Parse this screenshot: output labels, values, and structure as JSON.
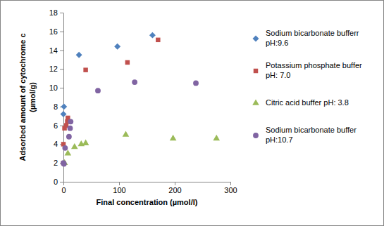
{
  "chart_data": {
    "type": "scatter",
    "x_label": "Final concentration (µmol/l)",
    "y_label": "Adsorbed amount of cytochrome c (µmol/g)",
    "xlim": [
      0,
      300
    ],
    "xticks": [
      0,
      100,
      200,
      300
    ],
    "ylim": [
      0,
      18
    ],
    "yticks": [
      0,
      2,
      4,
      6,
      8,
      10,
      12,
      14,
      16,
      18
    ],
    "grid": false,
    "legend": "right",
    "series": [
      {
        "name": "Sodium bicarbonate bufferr pH:9.6",
        "color": "#4f81bd",
        "marker": "diamond",
        "x": [
          0,
          1,
          28,
          97,
          160
        ],
        "values": [
          7.2,
          8.0,
          13.5,
          14.4,
          15.6
        ]
      },
      {
        "name": "Potassium phosphate buffer pH: 7.0",
        "color": "#c0504d",
        "marker": "square",
        "x": [
          0,
          0,
          2,
          5,
          7,
          8,
          40,
          115,
          170
        ],
        "values": [
          2.0,
          4.0,
          5.7,
          6.0,
          6.4,
          6.8,
          11.9,
          12.7,
          15.1
        ]
      },
      {
        "name": "Citric acid buffer pH: 3.8",
        "color": "#9bbb59",
        "marker": "triangle",
        "x": [
          2,
          8,
          20,
          32,
          40,
          112,
          197,
          275
        ],
        "values": [
          2.0,
          3.0,
          3.7,
          4.0,
          4.1,
          5.0,
          4.6,
          4.6
        ]
      },
      {
        "name": "Sodium bicarbonate buffer pH:10.7",
        "color": "#8064a2",
        "marker": "circle",
        "x": [
          0,
          1,
          3,
          10,
          12,
          13,
          62,
          128,
          238
        ],
        "values": [
          2.0,
          1.9,
          3.6,
          4.8,
          5.7,
          6.4,
          9.7,
          10.6,
          10.5
        ]
      }
    ]
  }
}
